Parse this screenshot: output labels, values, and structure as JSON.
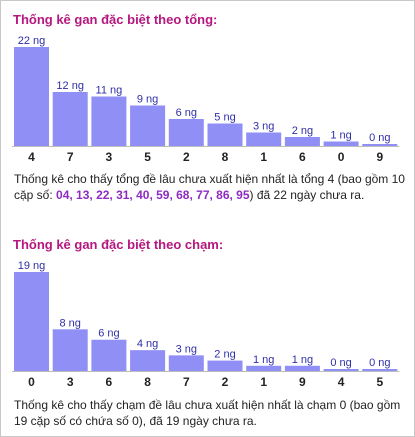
{
  "colors": {
    "title": "#b5177e",
    "bar": "#8f8ff5",
    "highlight": "#8e2bc2",
    "baseline": "#bdbdbd"
  },
  "section1": {
    "title": "Thống kê gan đặc biệt theo tổng:",
    "desc_before": "Thống kê cho thấy tổng đề lâu chưa xuất hiện nhất là tổng 4 (bao gồm 10 cặp số: ",
    "desc_numbers": "04, 13, 22, 31, 40, 59, 68, 77, 86, 95",
    "desc_after": ") đã 22 ngày chưa ra."
  },
  "section2": {
    "title": "Thống kê gan đặc biệt theo chạm:",
    "desc": "Thống kê cho thấy chạm đề lâu chưa xuất hiện nhất là chạm 0 (bao gồm 19 cặp số có chứa số 0), đã 19 ngày chưa ra."
  },
  "chart_data": [
    {
      "type": "bar",
      "categories": [
        "4",
        "7",
        "3",
        "5",
        "2",
        "8",
        "1",
        "6",
        "0",
        "9"
      ],
      "values": [
        22,
        12,
        11,
        9,
        6,
        5,
        3,
        2,
        1,
        0
      ],
      "value_labels": [
        "22 ng",
        "12 ng",
        "11 ng",
        "9 ng",
        "6 ng",
        "5 ng",
        "3 ng",
        "2 ng",
        "1 ng",
        "0 ng"
      ],
      "title": "Thống kê gan đặc biệt theo tổng:",
      "xlabel": "",
      "ylabel": "",
      "ylim": [
        0,
        22
      ],
      "grid": false
    },
    {
      "type": "bar",
      "categories": [
        "0",
        "3",
        "6",
        "8",
        "7",
        "2",
        "1",
        "9",
        "4",
        "5"
      ],
      "values": [
        19,
        8,
        6,
        4,
        3,
        2,
        1,
        1,
        0,
        0
      ],
      "value_labels": [
        "19 ng",
        "8 ng",
        "6 ng",
        "4 ng",
        "3 ng",
        "2 ng",
        "1 ng",
        "1 ng",
        "0 ng",
        "0 ng"
      ],
      "title": "Thống kê gan đặc biệt theo chạm:",
      "xlabel": "",
      "ylabel": "",
      "ylim": [
        0,
        19
      ],
      "grid": false
    }
  ]
}
